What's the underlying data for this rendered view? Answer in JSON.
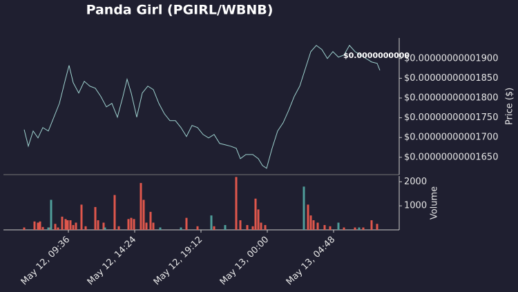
{
  "chart_data": [
    {
      "type": "line",
      "title": "Panda Girl (PGIRL/WBNB)",
      "ylabel": "Price ($)",
      "color": "#9fd3d0",
      "x": [
        6.4,
        6.7,
        7.05,
        7.4,
        7.75,
        8.15,
        8.55,
        8.95,
        9.35,
        9.65,
        9.95,
        10.35,
        10.75,
        11.15,
        11.55,
        11.95,
        12.35,
        12.75,
        13.15,
        13.55,
        13.85,
        14.15,
        14.55,
        14.95,
        15.35,
        15.75,
        16.15,
        16.55,
        16.95,
        17.35,
        17.75,
        18.15,
        18.55,
        18.95,
        19.35,
        19.75,
        20.15,
        20.55,
        20.95,
        21.35,
        21.75,
        22.05,
        22.45,
        22.95,
        23.35,
        23.65,
        23.95,
        24.35,
        24.75,
        25.15,
        25.55,
        25.95,
        26.35,
        26.75,
        27.15,
        27.55,
        27.95,
        28.35,
        28.75,
        29.15,
        29.55,
        29.95,
        30.35,
        30.75,
        31.15,
        31.55,
        31.95,
        32.15
      ],
      "values": [
        1.72e-11,
        1.678e-11,
        1.7165e-11,
        1.699e-11,
        1.7252e-11,
        1.7165e-11,
        1.7514e-11,
        1.7864e-11,
        1.8423e-11,
        1.8825e-11,
        1.8388e-11,
        1.8126e-11,
        1.8423e-11,
        1.8301e-11,
        1.8248e-11,
        1.8039e-11,
        1.7776e-11,
        1.7864e-11,
        1.7514e-11,
        1.8039e-11,
        1.8476e-11,
        1.8126e-11,
        1.7514e-11,
        1.8126e-11,
        1.8301e-11,
        1.8213e-11,
        1.7864e-11,
        1.7602e-11,
        1.7427e-11,
        1.7427e-11,
        1.7252e-11,
        1.7025e-11,
        1.7304e-11,
        1.7252e-11,
        1.7077e-11,
        1.699e-11,
        1.7077e-11,
        1.685e-11,
        1.6815e-11,
        1.678e-11,
        1.6728e-11,
        1.6465e-11,
        1.657e-11,
        1.657e-11,
        1.6465e-11,
        1.6291e-11,
        1.6221e-11,
        1.6728e-11,
        1.7165e-11,
        1.7374e-11,
        1.7689e-11,
        1.8039e-11,
        1.8301e-11,
        1.8738e-11,
        1.9175e-11,
        1.9332e-11,
        1.9227e-11,
        1.9e-11,
        1.9175e-11,
        1.9035e-11,
        1.9087e-11,
        1.9332e-11,
        1.9175e-11,
        1.9087e-11,
        1.9e-11,
        1.8913e-11,
        1.8878e-11,
        1.8703e-11
      ],
      "annotation": "$0.0000000000",
      "xlim": [
        4.9,
        33.55
      ],
      "ylim": [
        1.606e-11,
        1.952e-11
      ],
      "yticks": [
        {
          "value": 1.65e-11,
          "label": "$0.00000000001650"
        },
        {
          "value": 1.7e-11,
          "label": "$0.00000000001700"
        },
        {
          "value": 1.75e-11,
          "label": "$0.00000000001750"
        },
        {
          "value": 1.8e-11,
          "label": "$0.00000000001800"
        },
        {
          "value": 1.85e-11,
          "label": "$0.00000000001850"
        },
        {
          "value": 1.9e-11,
          "label": "$0.00000000001900"
        }
      ]
    },
    {
      "type": "bar",
      "ylabel": "Volume",
      "series": [
        {
          "color": "#e0574c",
          "x": [
            6.4,
            7.15,
            7.4,
            7.55,
            7.75,
            8.25,
            8.65,
            8.85,
            9.15,
            9.4,
            9.55,
            9.75,
            9.95,
            10.15,
            10.55,
            10.85,
            11.55,
            11.75,
            12.15,
            12.95,
            13.25,
            13.95,
            14.15,
            14.35,
            14.85,
            15.05,
            15.25,
            15.55,
            15.75,
            18.15,
            18.95,
            20.15,
            21.75,
            22.05,
            22.55,
            22.95,
            23.15,
            23.35,
            23.55,
            23.85,
            26.95,
            27.15,
            27.35,
            27.65,
            28.15,
            28.55,
            29.55,
            30.35,
            30.95,
            31.55,
            31.95
          ],
          "values": [
            100,
            350,
            300,
            350,
            120,
            100,
            250,
            100,
            550,
            450,
            400,
            400,
            200,
            300,
            1050,
            150,
            950,
            400,
            300,
            1450,
            150,
            450,
            500,
            450,
            1950,
            1250,
            300,
            750,
            300,
            500,
            150,
            150,
            2200,
            400,
            200,
            150,
            1300,
            850,
            300,
            200,
            1050,
            600,
            400,
            300,
            200,
            150,
            100,
            100,
            100,
            400,
            250
          ]
        },
        {
          "color": "#4f9e9a",
          "x": [
            8.15,
            8.35,
            12.25,
            16.25,
            17.75,
            19.95,
            20.95,
            26.65,
            29.15,
            30.65
          ],
          "values": [
            100,
            1250,
            100,
            100,
            100,
            600,
            200,
            1800,
            300,
            100
          ]
        }
      ],
      "xlim": [
        4.9,
        33.55
      ],
      "ylim": [
        0,
        2240
      ],
      "yticks": [
        1000,
        2000
      ],
      "xticks": [
        {
          "value": 9.6,
          "label": "May 12, 09:36"
        },
        {
          "value": 14.4,
          "label": "May 12, 14:24"
        },
        {
          "value": 19.2,
          "label": "May 12, 19:12"
        },
        {
          "value": 24,
          "label": "May 13, 00:00"
        },
        {
          "value": 28.8,
          "label": "May 13, 04:48"
        }
      ]
    }
  ]
}
